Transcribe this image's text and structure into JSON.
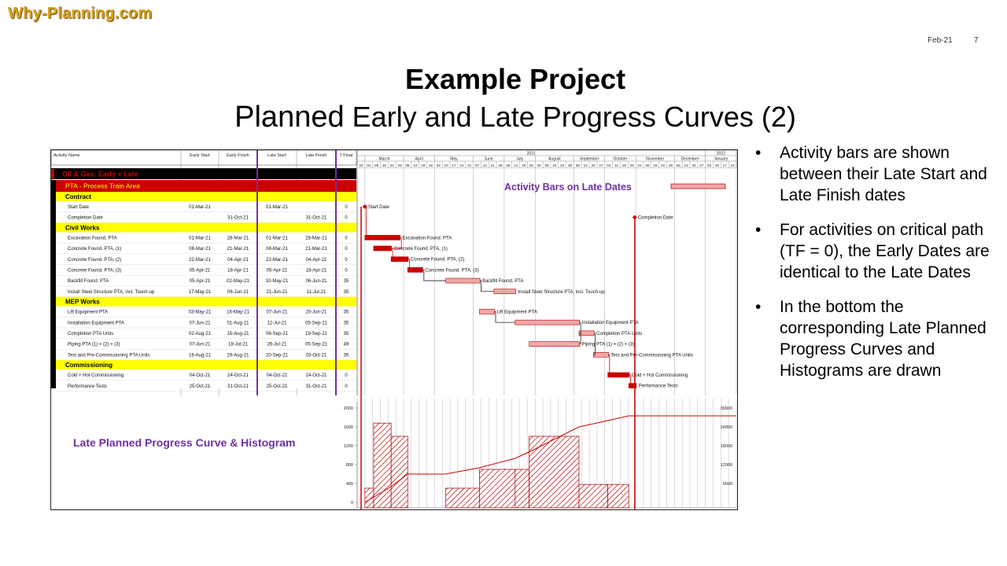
{
  "logo": "Why-Planning.com",
  "header": {
    "date": "Feb-21",
    "page": "7"
  },
  "title": {
    "line1": "Example Project",
    "line2_big": "Planned",
    "line2_rest": " Early and Late Progress Curves (2)"
  },
  "bullets": [
    "Activity bars are shown between their Late Start and Late Finish dates",
    "For activities on critical path (TF = 0), the Early Dates are identical to the Late Dates",
    "In the bottom the corresponding Late Planned Progress Curves and Histograms are drawn"
  ],
  "table": {
    "columns": [
      "Activity Name",
      "Early Start",
      "Early Finish",
      "Late Start",
      "Late Finish",
      "T Float"
    ],
    "project": "Oil & Gas: Early + Late",
    "area": "PTA - Process Train Area",
    "groups": [
      {
        "name": "Contract",
        "rows": [
          [
            "Start Date",
            "01-Mar-21",
            "",
            "01-Mar-21",
            "",
            "0"
          ],
          [
            "Completion Date",
            "",
            "31-Oct-21",
            "",
            "31-Oct-21",
            "0"
          ]
        ]
      },
      {
        "name": "Civil Works",
        "rows": [
          [
            "Excavation Found. PTA",
            "01-Mar-21",
            "28-Mar-21",
            "01-Mar-21",
            "28-Mar-21",
            "0"
          ],
          [
            "Concrete Found. PTA, (1)",
            "08-Mar-21",
            "21-Mar-21",
            "08-Mar-21",
            "21-Mar-21",
            "0"
          ],
          [
            "Concrete Found. PTA, (2)",
            "22-Mar-21",
            "04-Apr-21",
            "22-Mar-21",
            "04-Apr-21",
            "0"
          ],
          [
            "Concrete Found. PTA, (3)",
            "05-Apr-21",
            "18-Apr-21",
            "05-Apr-21",
            "18-Apr-21",
            "0"
          ],
          [
            "Backfill Found. PTA",
            "05-Apr-21",
            "02-May-21",
            "10-May-21",
            "06-Jun-21",
            "35"
          ],
          [
            "Install Steel Structure PTA, incl. Touch-up",
            "17-May-21",
            "06-Jun-21",
            "21-Jun-21",
            "11-Jul-21",
            "35"
          ]
        ]
      },
      {
        "name": "MEP Works",
        "rows": [
          [
            "Lift Equipment PTA",
            "03-May-21",
            "16-May-21",
            "07-Jun-21",
            "20-Jun-21",
            "35"
          ],
          [
            "Installation Equipment PTA",
            "07-Jun-21",
            "01-Aug-21",
            "12-Jul-21",
            "05-Sep-21",
            "35"
          ],
          [
            "Completion PTA Units",
            "02-Aug-21",
            "15-Aug-21",
            "06-Sep-21",
            "19-Sep-21",
            "35"
          ],
          [
            "Piping PTA (1) + (2) + (3)",
            "07-Jun-21",
            "18-Jul-21",
            "26-Jul-21",
            "05-Sep-21",
            "49"
          ],
          [
            "Test and Pre-Commissioning PTA Units",
            "16-Aug-21",
            "29-Aug-21",
            "20-Sep-21",
            "03-Oct-21",
            "35"
          ]
        ]
      },
      {
        "name": "Commissioning",
        "rows": [
          [
            "Cold + Hot Commissioning",
            "04-Oct-21",
            "24-Oct-21",
            "04-Oct-21",
            "24-Oct-21",
            "0"
          ],
          [
            "Performance Tests",
            "25-Oct-21",
            "31-Oct-21",
            "25-Oct-21",
            "31-Oct-21",
            "0"
          ]
        ]
      }
    ]
  },
  "gantt": {
    "years": [
      "2021",
      "2022"
    ],
    "months": [
      "March",
      "April",
      "May",
      "June",
      "July",
      "August",
      "September",
      "October",
      "November",
      "December",
      "January"
    ],
    "weeks": [
      "22",
      "01",
      "08",
      "15",
      "22",
      "29",
      "05",
      "12",
      "19",
      "26",
      "03",
      "10",
      "17",
      "24",
      "31",
      "07",
      "14",
      "21",
      "28",
      "05",
      "12",
      "19",
      "26",
      "02",
      "09",
      "16",
      "23",
      "30",
      "06",
      "13",
      "20",
      "27",
      "04",
      "11",
      "18",
      "25",
      "01",
      "08",
      "15",
      "22",
      "29",
      "06",
      "13",
      "20",
      "27",
      "03",
      "10",
      "17",
      "24"
    ],
    "annotation": "Activity Bars on Late Dates",
    "bar_labels": [
      "Start Date",
      "Completion Date",
      "Excavation Found. PTA",
      "Concrete Found. PTA, (1)",
      "Concrete Found. PTA, (2)",
      "Concrete Found. PTA, (3)",
      "Backfill Found. PTA",
      "Install Steel Structure PTA, incl. Touch-up",
      "Lift Equipment PTA",
      "Installation Equipment PTA",
      "Completion PTA Units",
      "Piping PTA (1) + (2) + (3)",
      "Test and Pre-Commissioning PTA Units",
      "Cold + Hot Commissioning",
      "Performance Tests"
    ]
  },
  "curve": {
    "label": "Late Planned Progress Curve & Histogram",
    "left_ticks": [
      "2000",
      "1600",
      "1200",
      "800",
      "400",
      "0"
    ],
    "right_ticks": [
      "30000",
      "24000",
      "18000",
      "12000",
      "6000"
    ]
  },
  "colors": {
    "critical": "#cc0000",
    "bar": "#f4a7a7",
    "bar_edge": "#b00000",
    "yellow": "#ffff00",
    "black": "#000000",
    "purple": "#7030a0",
    "logo": "#d9a21b"
  }
}
